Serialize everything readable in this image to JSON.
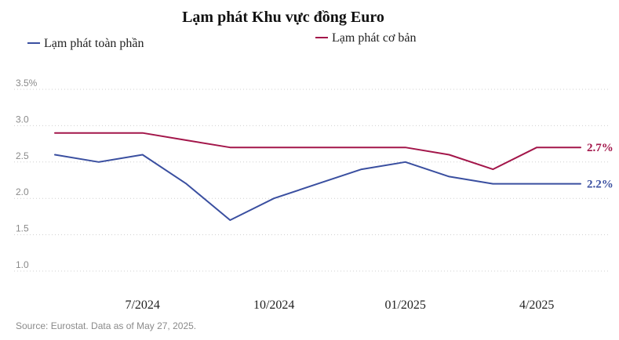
{
  "chart_data": {
    "type": "line",
    "title": "Lạm phát Khu vực đồng Euro",
    "x": [
      "5/2024",
      "6/2024",
      "7/2024",
      "8/2024",
      "9/2024",
      "10/2024",
      "11/2024",
      "12/2024",
      "01/2025",
      "02/2025",
      "03/2025",
      "4/2025",
      "5/2025"
    ],
    "x_tick_labels": [
      "7/2024",
      "10/2024",
      "01/2025",
      "4/2025"
    ],
    "x_tick_indices": [
      2,
      5,
      8,
      11
    ],
    "y_tick_labels": [
      "3.5%",
      "3.0",
      "2.5",
      "2.0",
      "1.5",
      "1.0"
    ],
    "y_tick_values": [
      3.5,
      3.0,
      2.5,
      2.0,
      1.5,
      1.0
    ],
    "ylim": [
      1.0,
      3.5
    ],
    "grid": true,
    "legend_position": "top",
    "series": [
      {
        "name": "Lạm phát toàn phần",
        "color": "#3a4fa0",
        "values": [
          2.6,
          2.5,
          2.6,
          2.2,
          1.7,
          2.0,
          2.2,
          2.4,
          2.5,
          2.3,
          2.2,
          2.2,
          2.2
        ],
        "end_label": "2.2%"
      },
      {
        "name": "Lạm phát cơ bản",
        "color": "#a3164a",
        "values": [
          2.9,
          2.9,
          2.9,
          2.8,
          2.7,
          2.7,
          2.7,
          2.7,
          2.7,
          2.6,
          2.4,
          2.7,
          2.7
        ],
        "end_label": "2.7%"
      }
    ],
    "source": "Source: Eurostat. Data as of May 27, 2025."
  }
}
